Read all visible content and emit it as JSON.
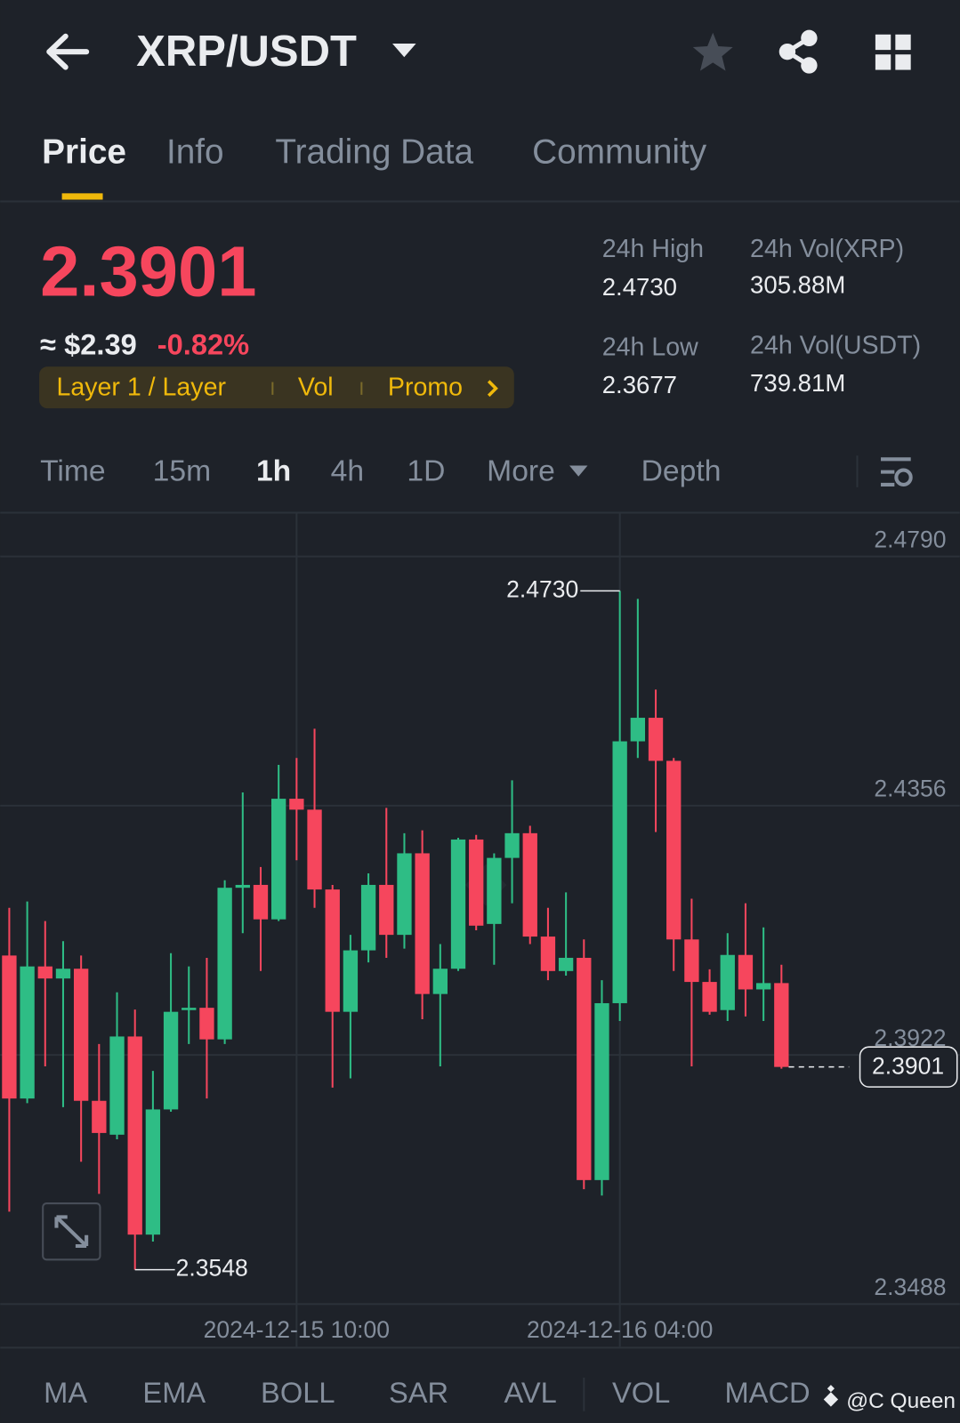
{
  "header": {
    "pair": "XRP/USDT"
  },
  "tabs": [
    "Price",
    "Info",
    "Trading Data",
    "Community"
  ],
  "price": {
    "last": "2.3901",
    "usd": "≈ $2.39",
    "change": "-0.82%"
  },
  "tags": [
    "Layer 1 / Layer",
    "Vol",
    "Promo"
  ],
  "stats": [
    {
      "label": "24h High",
      "value": "2.4730"
    },
    {
      "label": "24h Vol(XRP)",
      "value": "305.88M"
    },
    {
      "label": "24h Low",
      "value": "2.3677"
    },
    {
      "label": "24h Vol(USDT)",
      "value": "739.81M"
    }
  ],
  "intervals": [
    "Time",
    "15m",
    "1h",
    "4h",
    "1D",
    "More",
    "Depth"
  ],
  "indicators": [
    "MA",
    "EMA",
    "BOLL",
    "SAR",
    "AVL",
    "VOL",
    "MACD"
  ],
  "watermark": "@C Queen",
  "chart_data": {
    "type": "candlestick",
    "categories": [
      null,
      null,
      null,
      null,
      null,
      null,
      null,
      null,
      null,
      null,
      null,
      null,
      null,
      null,
      null,
      null,
      "2024-12-15 10:00",
      null,
      null,
      null,
      null,
      null,
      null,
      null,
      null,
      null,
      null,
      null,
      null,
      null,
      null,
      null,
      null,
      null,
      "2024-12-16 04:00",
      null,
      null,
      null,
      null,
      null,
      null,
      null,
      null,
      null
    ],
    "open": [
      2.4095,
      2.3846,
      2.4076,
      2.4055,
      2.4072,
      2.3842,
      2.3783,
      2.3954,
      2.3609,
      2.3827,
      2.4,
      2.4004,
      2.3949,
      2.4213,
      2.4218,
      2.4158,
      2.4368,
      2.4349,
      2.421,
      2.3997,
      2.4104,
      2.4218,
      2.4131,
      2.4273,
      2.4028,
      2.4072,
      2.4297,
      2.415,
      2.4265,
      2.4308,
      2.4128,
      2.4068,
      2.4091,
      2.3704,
      2.4012,
      2.4468,
      2.4509,
      2.4434,
      2.4123,
      2.4049,
      2.4,
      2.4096,
      2.4036,
      2.4047
    ],
    "high": [
      2.4178,
      2.4189,
      2.4155,
      2.412,
      2.4095,
      2.3941,
      2.4031,
      2.4001,
      2.3894,
      2.4099,
      2.4076,
      2.4091,
      2.4226,
      2.4379,
      2.4249,
      2.4427,
      2.4439,
      2.449,
      2.4218,
      2.4131,
      2.4238,
      2.4352,
      2.4308,
      2.4313,
      2.4115,
      2.43,
      2.4305,
      2.4273,
      2.44,
      2.4321,
      2.4178,
      2.4205,
      2.4123,
      2.4052,
      2.473,
      2.4716,
      2.4558,
      2.4439,
      2.4194,
      2.4071,
      2.4134,
      2.4186,
      2.4144,
      2.4079
    ],
    "low": [
      2.3649,
      2.3838,
      2.3902,
      2.3831,
      2.3736,
      2.368,
      2.3775,
      2.3548,
      2.3597,
      2.3823,
      2.3941,
      2.3846,
      2.3941,
      2.4134,
      2.4068,
      2.4155,
      2.4261,
      2.4178,
      2.3865,
      2.3881,
      2.4083,
      2.4091,
      2.4107,
      2.3984,
      2.3902,
      2.4068,
      2.4139,
      2.4079,
      2.4186,
      2.4115,
      2.4052,
      2.406,
      2.3688,
      2.3677,
      2.3981,
      2.4439,
      2.431,
      2.4068,
      2.3902,
      2.3992,
      2.3981,
      2.3989,
      2.3981,
      2.3898
    ],
    "close": [
      2.3846,
      2.4076,
      2.4055,
      2.4072,
      2.3842,
      2.3786,
      2.3954,
      2.3609,
      2.3827,
      2.3997,
      2.4004,
      2.3949,
      2.4213,
      2.4218,
      2.4158,
      2.4368,
      2.4349,
      2.421,
      2.3997,
      2.4104,
      2.4218,
      2.4131,
      2.4273,
      2.4028,
      2.4072,
      2.4297,
      2.4147,
      2.4265,
      2.4308,
      2.4128,
      2.4068,
      2.4091,
      2.3704,
      2.4012,
      2.4468,
      2.4509,
      2.4434,
      2.4123,
      2.4049,
      2.3997,
      2.4096,
      2.4036,
      2.4047,
      2.3901
    ],
    "up_color": "#2ebd85",
    "down_color": "#f6465d",
    "ylim": [
      2.3488,
      2.4866
    ],
    "yticks": [
      {
        "value": 2.479,
        "label": "2.4790"
      },
      2.4356,
      2.3922,
      2.3488
    ],
    "grid": true,
    "high_marker": {
      "value": 2.473,
      "label": "2.4730"
    },
    "low_marker": 2.3548,
    "last_price": 2.3901
  }
}
